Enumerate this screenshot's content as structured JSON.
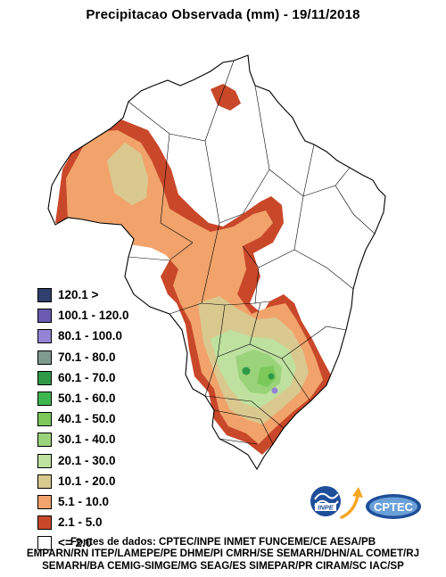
{
  "header": {
    "title": "Precipitacao Observada (mm) - 19/11/2018"
  },
  "legend": {
    "items": [
      {
        "label": "120.1 >",
        "color": "#2f3f6e"
      },
      {
        "label": "100.1 - 120.0",
        "color": "#6a5bb0"
      },
      {
        "label": "80.1 - 100.0",
        "color": "#9484d6"
      },
      {
        "label": "70.1 - 80.0",
        "color": "#7f9a8f"
      },
      {
        "label": "60.1 - 70.0",
        "color": "#2e9a46"
      },
      {
        "label": "50.1 - 60.0",
        "color": "#3fb64f"
      },
      {
        "label": "40.1 - 50.0",
        "color": "#7cc95a"
      },
      {
        "label": "30.1 - 40.0",
        "color": "#9bd37a"
      },
      {
        "label": "20.1 - 30.0",
        "color": "#bfe1a0"
      },
      {
        "label": "10.1 - 20.0",
        "color": "#d9c98f"
      },
      {
        "label": "5.1 - 10.0",
        "color": "#f1a36b"
      },
      {
        "label": "2.1 - 5.0",
        "color": "#c9482a"
      },
      {
        "label": "<= 2.0",
        "color": "#ffffff"
      }
    ]
  },
  "logos": {
    "inpe": "INPE",
    "cptec": "CPTEC"
  },
  "footer": {
    "lines": [
      "Fontes de dados: CPTEC/INPE INMET FUNCEME/CE AESA/PB",
      "EMPARN/RN ITEP/LAMEPE/PE DHME/PI CMRH/SE SEMARH/DHN/AL COMET/RJ",
      "SEMARH/BA CEMIG-SIMGE/MG SEAG/ES SIMEPAR/PR CIRAM/SC IAC/SP"
    ]
  }
}
